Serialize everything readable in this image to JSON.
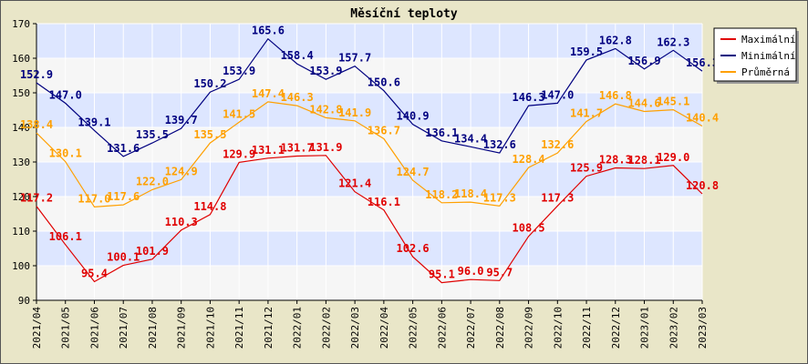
{
  "chart_data": {
    "type": "line",
    "title": "Měsíční teploty",
    "xlabel": "",
    "ylabel": "",
    "ylim": [
      90,
      170
    ],
    "y_ticks": [
      90,
      100,
      110,
      120,
      130,
      140,
      150,
      160,
      170
    ],
    "grid": true,
    "legend_position": "top-right",
    "categories": [
      "2021/04",
      "2021/05",
      "2021/06",
      "2021/07",
      "2021/08",
      "2021/09",
      "2021/10",
      "2021/11",
      "2021/12",
      "2022/01",
      "2022/02",
      "2022/03",
      "2022/04",
      "2022/05",
      "2022/06",
      "2022/07",
      "2022/08",
      "2022/09",
      "2022/10",
      "2022/11",
      "2022/12",
      "2023/01",
      "2023/02",
      "2023/03"
    ],
    "series": [
      {
        "name": "Maximální",
        "color": "#e00000",
        "values": [
          117.2,
          106.1,
          95.4,
          100.1,
          101.9,
          110.3,
          114.8,
          129.9,
          131.1,
          131.7,
          131.9,
          121.4,
          116.1,
          102.6,
          95.1,
          96.0,
          95.7,
          108.5,
          117.3,
          125.9,
          128.3,
          128.1,
          129.0,
          120.8
        ]
      },
      {
        "name": "Minimální",
        "color": "#000080",
        "values": [
          152.9,
          147.0,
          139.1,
          131.6,
          135.5,
          139.7,
          150.2,
          153.9,
          165.6,
          158.4,
          153.9,
          157.7,
          150.6,
          140.9,
          136.1,
          134.4,
          132.6,
          146.3,
          147.0,
          159.5,
          162.8,
          156.9,
          162.3,
          156.3
        ]
      },
      {
        "name": "Průměrná",
        "color": "#ffa000",
        "values": [
          138.4,
          130.1,
          117.0,
          117.6,
          122.0,
          124.9,
          135.5,
          141.5,
          147.4,
          146.3,
          142.8,
          141.9,
          136.7,
          124.7,
          118.2,
          118.4,
          117.3,
          128.4,
          132.6,
          141.7,
          146.8,
          144.6,
          145.1,
          140.4
        ]
      }
    ]
  }
}
